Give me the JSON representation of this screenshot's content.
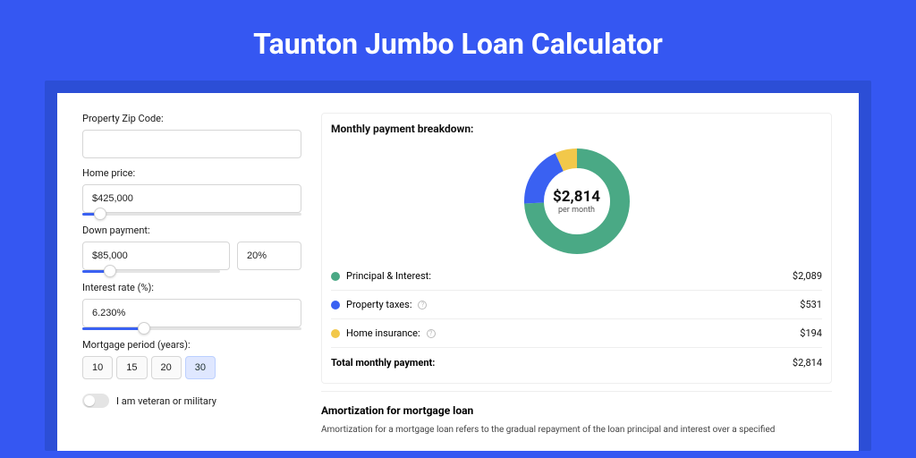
{
  "page": {
    "title": "Taunton Jumbo Loan Calculator",
    "background_color": "#3557f2",
    "card_shadow_color": "#2c4ed6"
  },
  "form": {
    "zip": {
      "label": "Property Zip Code:",
      "value": ""
    },
    "home_price": {
      "label": "Home price:",
      "value": "$425,000",
      "slider_pct": 8
    },
    "down_payment": {
      "label": "Down payment:",
      "value": "$85,000",
      "pct_value": "20%",
      "slider_pct": 20
    },
    "interest": {
      "label": "Interest rate (%):",
      "value": "6.230%",
      "slider_pct": 28
    },
    "period": {
      "label": "Mortgage period (years):",
      "options": [
        "10",
        "15",
        "20",
        "30"
      ],
      "selected": "30"
    },
    "veteran": {
      "label": "I am veteran or military",
      "on": false
    }
  },
  "breakdown": {
    "title": "Monthly payment breakdown:",
    "center_value": "$2,814",
    "center_sub": "per month",
    "items": [
      {
        "label": "Principal & Interest:",
        "value": "$2,089",
        "color": "#4aa985",
        "info": false,
        "pct": 74.2
      },
      {
        "label": "Property taxes:",
        "value": "$531",
        "color": "#3a61f2",
        "info": true,
        "pct": 18.9
      },
      {
        "label": "Home insurance:",
        "value": "$194",
        "color": "#f2c84a",
        "info": true,
        "pct": 6.9
      }
    ],
    "total_label": "Total monthly payment:",
    "total_value": "$2,814"
  },
  "donut": {
    "size": 120,
    "radius": 48,
    "stroke": 22
  },
  "amortization": {
    "title": "Amortization for mortgage loan",
    "text": "Amortization for a mortgage loan refers to the gradual repayment of the loan principal and interest over a specified"
  }
}
